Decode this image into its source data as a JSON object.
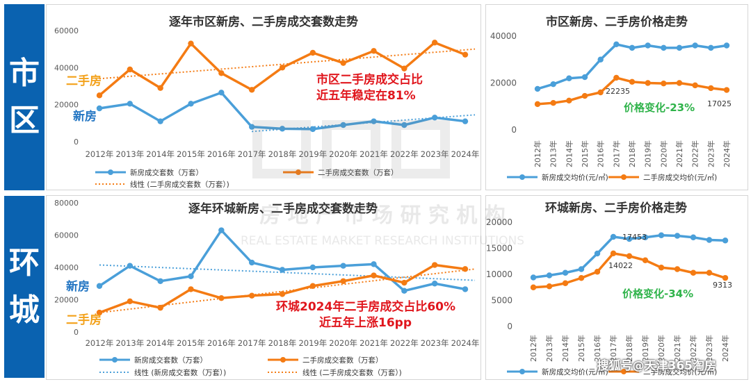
{
  "sides": [
    {
      "chars": [
        "市",
        "区"
      ]
    },
    {
      "chars": [
        "环",
        "城"
      ]
    }
  ],
  "watermark": {
    "cn": "房 地 产 市 场 研 究 机 构",
    "en": "REAL ESTATE MARKET RESEARCH INSTITUTIONS"
  },
  "credit": "搜狐号@天津365淘房",
  "colors": {
    "blue": "#4a9fd9",
    "orange": "#f47b13",
    "red": "#e0161d",
    "green": "#2fb34a",
    "label_orange": "#f3a11a",
    "label_blue": "#2476c3",
    "side": "#0a62b0"
  },
  "chart_data": [
    {
      "type": "line",
      "title": "逐年市区新房、二手房成交套数走势",
      "categories": [
        "2012年",
        "2013年",
        "2014年",
        "2015年",
        "2016年",
        "2017年",
        "2018年",
        "2019年",
        "2020年",
        "2021年",
        "2022年",
        "2023年",
        "2024年"
      ],
      "ylim": [
        0,
        60000
      ],
      "yticks": [
        "0",
        "20000",
        "40000",
        "60000"
      ],
      "series": [
        {
          "name": "新房成交套数（万套）",
          "color": "#4a9fd9",
          "values": [
            18000,
            20500,
            11000,
            20500,
            26500,
            8000,
            7000,
            6800,
            9000,
            11000,
            9000,
            13000,
            11000
          ]
        },
        {
          "name": "二手房成交套数（万套）",
          "color": "#f47b13",
          "values": [
            25000,
            39000,
            29000,
            53000,
            37000,
            28000,
            40000,
            48000,
            42500,
            49000,
            39500,
            53500,
            47000
          ]
        }
      ],
      "trendlines": [
        {
          "name": "线性 (二手房成交套数（万套）)",
          "color": "#f47b13",
          "from": 34000,
          "to": 50000,
          "start_index": 0
        },
        {
          "name": "",
          "color": "#4a9fd9",
          "from": 5500,
          "to": 14500,
          "start_index": 5
        }
      ],
      "annotations": {
        "secondhand": "二手房",
        "newhouse": "新房",
        "note_line1": "市区二手房成交占比",
        "note_line2": "近五年稳定在81%"
      }
    },
    {
      "type": "line",
      "title": "市区新房、二手房价格走势",
      "categories": [
        "2012年",
        "2013年",
        "2014年",
        "2015年",
        "2016年",
        "2017年",
        "2018年",
        "2019年",
        "2020年",
        "2021年",
        "2022年",
        "2023年",
        "2024年"
      ],
      "ylim": [
        0,
        40000
      ],
      "yticks": [
        "0",
        "20000",
        "40000"
      ],
      "series": [
        {
          "name": "新房成交均价(元/㎡)",
          "color": "#4a9fd9",
          "values": [
            17500,
            19500,
            22000,
            22500,
            30000,
            36500,
            35000,
            36000,
            35000,
            35000,
            36000,
            35000,
            36000
          ]
        },
        {
          "name": "二手房成交均价(元/㎡)",
          "color": "#f47b13",
          "values": [
            11000,
            11500,
            12500,
            14500,
            16000,
            22235,
            20500,
            20000,
            19800,
            20000,
            19000,
            17800,
            17025
          ]
        }
      ],
      "labels": {
        "peak": "22235",
        "last": "17025",
        "change": "价格变化-23%"
      }
    },
    {
      "type": "line",
      "title": "逐年环城新房、二手房成交套数走势",
      "categories": [
        "2012年",
        "2013年",
        "2014年",
        "2015年",
        "2016年",
        "2017年",
        "2018年",
        "2019年",
        "2020年",
        "2021年",
        "2022年",
        "2023年",
        "2024年"
      ],
      "ylim": [
        0,
        80000
      ],
      "yticks": [
        "0",
        "20000",
        "40000",
        "60000",
        "80000"
      ],
      "series": [
        {
          "name": "新房成交套数（万套）",
          "color": "#4a9fd9",
          "values": [
            28500,
            41000,
            31500,
            34500,
            63000,
            43000,
            38500,
            40000,
            41000,
            42000,
            25500,
            30000,
            26500
          ]
        },
        {
          "name": "二手房成交套数（万套）",
          "color": "#f47b13",
          "values": [
            12000,
            19000,
            15000,
            26500,
            21000,
            22500,
            23500,
            28500,
            31500,
            35000,
            30500,
            41500,
            39000
          ]
        }
      ],
      "trendlines": [
        {
          "name": "线性 (新房成交套数（万套）)",
          "color": "#4a9fd9",
          "from": 41500,
          "to": 32000,
          "start_index": 0
        },
        {
          "name": "线性 (二手房成交套数（万套）)",
          "color": "#f47b13",
          "from": 12000,
          "to": 39000,
          "start_index": 0
        }
      ],
      "annotations": {
        "secondhand": "二手房",
        "newhouse": "新房",
        "note_line1": "环城2024年二手房成交占比60%",
        "note_line2": "近五年上涨16pp"
      }
    },
    {
      "type": "line",
      "title": "环城新房、二手房价格走势",
      "categories": [
        "2012年",
        "2013年",
        "2014年",
        "2015年",
        "2016年",
        "2017年",
        "2018年",
        "2019年",
        "2020年",
        "2021年",
        "2022年",
        "2023年",
        "2024年"
      ],
      "ylim": [
        0,
        20000
      ],
      "yticks": [
        "0",
        "5000",
        "10000",
        "15000",
        "20000"
      ],
      "series": [
        {
          "name": "新房成交均价(元/㎡)",
          "color": "#4a9fd9",
          "values": [
            9400,
            9800,
            10300,
            11000,
            14000,
            17200,
            16800,
            17100,
            17500,
            17400,
            17100,
            16600,
            16500
          ]
        },
        {
          "name": "二手房成交均价(元/㎡)",
          "color": "#f47b13",
          "values": [
            7500,
            7700,
            8300,
            9300,
            10500,
            14022,
            13500,
            12700,
            11300,
            11000,
            10300,
            10300,
            9313
          ]
        }
      ],
      "labels": {
        "peak_new": "17453",
        "peak": "14022",
        "last": "9313",
        "change": "价格变化-34%"
      }
    }
  ]
}
